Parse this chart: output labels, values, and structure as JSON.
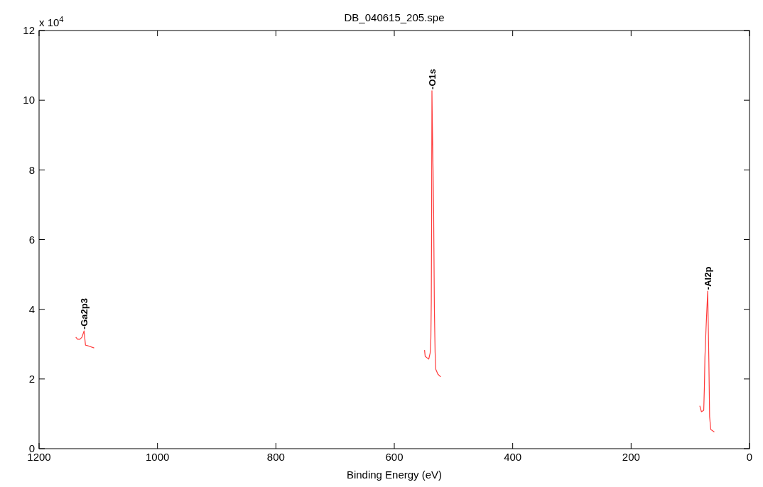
{
  "chart_data": {
    "type": "line",
    "title": "DB_040615_205.spe",
    "xlabel": "Binding Energy (eV)",
    "xlim": [
      1200,
      0
    ],
    "xticks": [
      1200,
      1000,
      800,
      600,
      400,
      200,
      0
    ],
    "ylim": [
      0,
      12
    ],
    "yticks": [
      0,
      2,
      4,
      6,
      8,
      10,
      12
    ],
    "grid": false,
    "line_style": "solid",
    "marker": "none",
    "series": [
      {
        "color": "#ff3b3b",
        "x": [
          1138,
          1135,
          1131,
          1127.5,
          1124,
          1121.6,
          1117,
          1107
        ],
        "values": [
          3.2,
          3.14,
          3.14,
          3.2,
          3.38,
          2.97,
          2.95,
          2.89
        ]
      },
      {
        "color": "#ff3b3b",
        "x": [
          548.9,
          547.8,
          541.8,
          539.4,
          538.2,
          537.5,
          537,
          536.4,
          535.8,
          534.5,
          533.5,
          532.3,
          531.1,
          530,
          526.4,
          521.6
        ],
        "values": [
          2.83,
          2.65,
          2.57,
          2.75,
          3.16,
          4.22,
          6.36,
          10.27,
          9.4,
          8.0,
          6.76,
          4.05,
          2.79,
          2.28,
          2.14,
          2.06
        ]
      },
      {
        "color": "#ff3b3b",
        "x": [
          84,
          81.2,
          77.3,
          76.1,
          75.3,
          73.3,
          70.6,
          68.6,
          67.4,
          65.4,
          59.4
        ],
        "values": [
          1.23,
          1.06,
          1.1,
          1.84,
          2.62,
          3.5,
          4.52,
          2.48,
          0.92,
          0.55,
          0.48
        ]
      }
    ],
    "annotations": [
      "x 10$^{4}$",
      {
        "text": "-Ga2p3",
        "x": 1124,
        "y": 3.38
      },
      {
        "text": "-O1s",
        "x": 536.4,
        "y": 10.27
      },
      {
        "text": "-Al2p",
        "x": 70.6,
        "y": 4.52
      }
    ]
  }
}
